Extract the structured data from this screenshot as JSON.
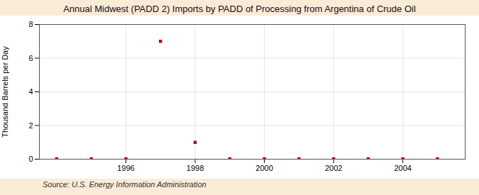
{
  "chart_data": {
    "type": "scatter",
    "title": "Annual Midwest (PADD 2) Imports by PADD of Processing from Argentina of Crude Oil",
    "ylabel": "Thousand Barrels per Day",
    "source": "Source: U.S. Energy Information Administration",
    "x": [
      1994,
      1995,
      1996,
      1997,
      1998,
      1999,
      2000,
      2001,
      2002,
      2003,
      2004,
      2005
    ],
    "values": [
      0.02,
      0.02,
      0.02,
      7.0,
      1.0,
      0.02,
      0.02,
      0.02,
      0.02,
      0.02,
      0.02,
      0.02
    ],
    "color": "#bb0000",
    "marker": "square",
    "xlim": [
      1993.5,
      2005.8
    ],
    "ylim": [
      0,
      8
    ],
    "xticks": [
      1996,
      1998,
      2000,
      2002,
      2004
    ],
    "yticks": [
      0,
      2,
      4,
      6,
      8
    ],
    "grid": true
  }
}
